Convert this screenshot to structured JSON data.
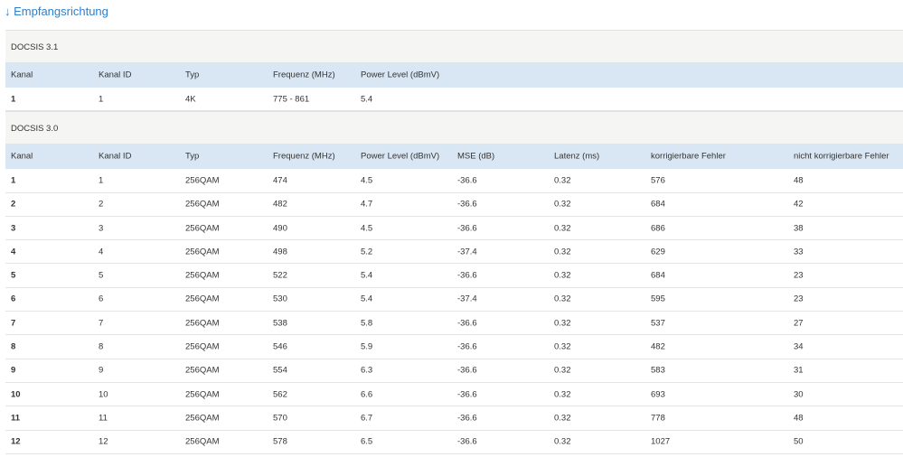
{
  "header": {
    "title": "↓ Empfangsrichtung"
  },
  "sections": [
    {
      "title": "DOCSIS 3.1",
      "columns": [
        "Kanal",
        "Kanal ID",
        "Typ",
        "Frequenz (MHz)",
        "Power Level (dBmV)"
      ],
      "rows": [
        [
          "1",
          "1",
          "4K",
          "775 - 861",
          "5.4"
        ]
      ]
    },
    {
      "title": "DOCSIS 3.0",
      "columns": [
        "Kanal",
        "Kanal ID",
        "Typ",
        "Frequenz (MHz)",
        "Power Level (dBmV)",
        "MSE (dB)",
        "Latenz (ms)",
        "korrigierbare Fehler",
        "nicht korrigierbare Fehler"
      ],
      "rows": [
        [
          "1",
          "1",
          "256QAM",
          "474",
          "4.5",
          "-36.6",
          "0.32",
          "576",
          "48"
        ],
        [
          "2",
          "2",
          "256QAM",
          "482",
          "4.7",
          "-36.6",
          "0.32",
          "684",
          "42"
        ],
        [
          "3",
          "3",
          "256QAM",
          "490",
          "4.5",
          "-36.6",
          "0.32",
          "686",
          "38"
        ],
        [
          "4",
          "4",
          "256QAM",
          "498",
          "5.2",
          "-37.4",
          "0.32",
          "629",
          "33"
        ],
        [
          "5",
          "5",
          "256QAM",
          "522",
          "5.4",
          "-36.6",
          "0.32",
          "684",
          "23"
        ],
        [
          "6",
          "6",
          "256QAM",
          "530",
          "5.4",
          "-37.4",
          "0.32",
          "595",
          "23"
        ],
        [
          "7",
          "7",
          "256QAM",
          "538",
          "5.8",
          "-36.6",
          "0.32",
          "537",
          "27"
        ],
        [
          "8",
          "8",
          "256QAM",
          "546",
          "5.9",
          "-36.6",
          "0.32",
          "482",
          "34"
        ],
        [
          "9",
          "9",
          "256QAM",
          "554",
          "6.3",
          "-36.6",
          "0.32",
          "583",
          "31"
        ],
        [
          "10",
          "10",
          "256QAM",
          "562",
          "6.6",
          "-36.6",
          "0.32",
          "693",
          "30"
        ],
        [
          "11",
          "11",
          "256QAM",
          "570",
          "6.7",
          "-36.6",
          "0.32",
          "778",
          "48"
        ],
        [
          "12",
          "12",
          "256QAM",
          "578",
          "6.5",
          "-36.6",
          "0.32",
          "1027",
          "50"
        ]
      ]
    }
  ]
}
